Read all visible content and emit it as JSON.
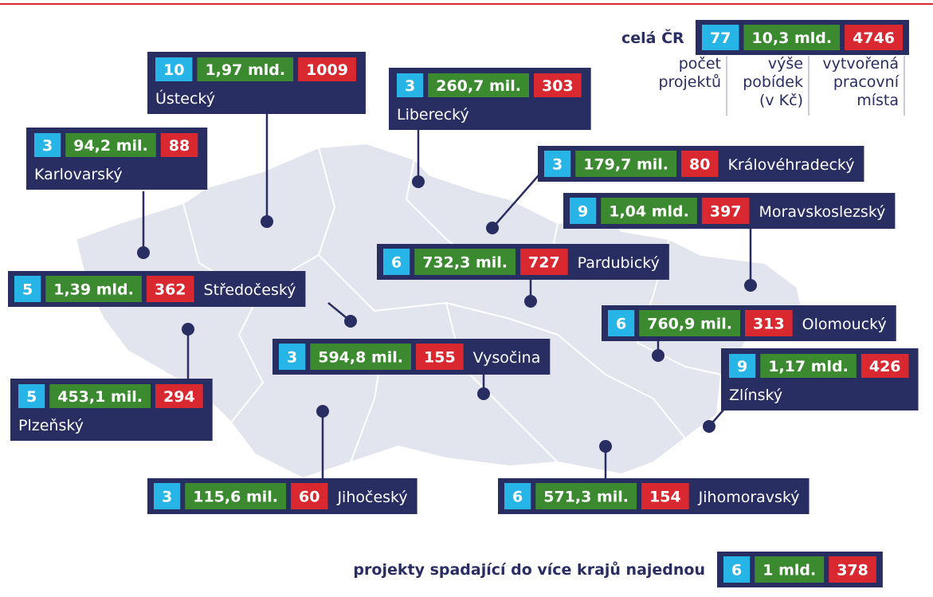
{
  "header": {
    "title_cr": "celá ČR",
    "total": {
      "projects": 77,
      "amount": "10,3 mld.",
      "jobs": 4746
    },
    "legend": [
      [
        "počet",
        "projektů"
      ],
      [
        "výše",
        "pobídek",
        "(v Kč)"
      ],
      [
        "vytvořená",
        "pracovní",
        "místa"
      ]
    ]
  },
  "regions": [
    {
      "name": "Ústecký",
      "projects": 10,
      "amount": "1,97 mld.",
      "jobs": 1009
    },
    {
      "name": "Liberecký",
      "projects": 3,
      "amount": "260,7 mil.",
      "jobs": 303
    },
    {
      "name": "Karlovarský",
      "projects": 3,
      "amount": "94,2 mil.",
      "jobs": 88
    },
    {
      "name": "Královéhradecký",
      "projects": 3,
      "amount": "179,7 mil.",
      "jobs": 80
    },
    {
      "name": "Moravskoslezský",
      "projects": 9,
      "amount": "1,04 mld.",
      "jobs": 397
    },
    {
      "name": "Pardubický",
      "projects": 6,
      "amount": "732,3 mil.",
      "jobs": 727
    },
    {
      "name": "Středočeský",
      "projects": 5,
      "amount": "1,39 mld.",
      "jobs": 362
    },
    {
      "name": "Olomoucký",
      "projects": 6,
      "amount": "760,9 mil.",
      "jobs": 313
    },
    {
      "name": "Vysočina",
      "projects": 3,
      "amount": "594,8 mil.",
      "jobs": 155
    },
    {
      "name": "Zlínský",
      "projects": 9,
      "amount": "1,17 mld.",
      "jobs": 426
    },
    {
      "name": "Plzeňský",
      "projects": 5,
      "amount": "453,1 mil.",
      "jobs": 294
    },
    {
      "name": "Jihočeský",
      "projects": 3,
      "amount": "115,6 mil.",
      "jobs": 60
    },
    {
      "name": "Jihomoravský",
      "projects": 6,
      "amount": "571,3 mil.",
      "jobs": 154
    }
  ],
  "footer": {
    "label": "projekty spadající do více krajů najednou",
    "projects": 6,
    "amount": "1 mld.",
    "jobs": 378
  }
}
